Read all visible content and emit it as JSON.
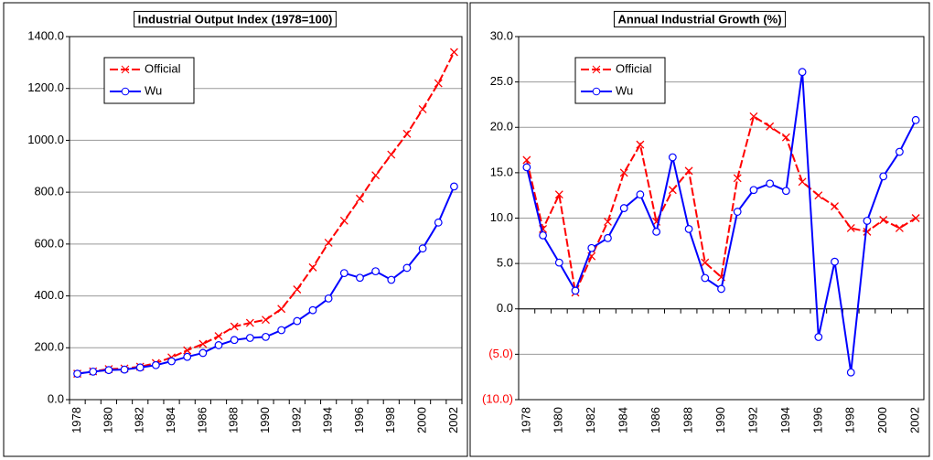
{
  "chart_data": [
    {
      "type": "line",
      "title": "Industrial Output Index (1978=100)",
      "categories": [
        "1978",
        null,
        "1980",
        null,
        "1982",
        null,
        "1984",
        null,
        "1986",
        null,
        "1988",
        null,
        "1990",
        null,
        "1992",
        null,
        "1994",
        null,
        "1996",
        null,
        "1998",
        null,
        "2000",
        null,
        "2002"
      ],
      "series": [
        {
          "name": "Official",
          "color": "#ff0000",
          "values": [
            100,
            109,
            118,
            120,
            127,
            141,
            163,
            190,
            215,
            245,
            282,
            296,
            308,
            350,
            425,
            510,
            605,
            690,
            775,
            865,
            945,
            1025,
            1120,
            1220,
            1340
          ]
        },
        {
          "name": "Wu",
          "color": "#0000ff",
          "values": [
            100,
            108,
            114,
            116,
            124,
            133,
            148,
            165,
            180,
            210,
            230,
            238,
            242,
            268,
            303,
            345,
            390,
            488,
            470,
            495,
            462,
            508,
            583,
            683,
            822
          ]
        }
      ],
      "ylim": [
        0,
        1400
      ],
      "yticks": [
        {
          "value": 0,
          "label": "0.0"
        },
        {
          "value": 200,
          "label": "200.0"
        },
        {
          "value": 400,
          "label": "400.0"
        },
        {
          "value": 600,
          "label": "600.0"
        },
        {
          "value": 800,
          "label": "800.0"
        },
        {
          "value": 1000,
          "label": "1000.0"
        },
        {
          "value": 1200,
          "label": "1200.0"
        },
        {
          "value": 1400,
          "label": "1400.0"
        }
      ],
      "grid": true,
      "legend": "top-left"
    },
    {
      "type": "line",
      "title": "Annual Industrial Growth (%)",
      "categories": [
        "1978",
        null,
        "1980",
        null,
        "1982",
        null,
        "1984",
        null,
        "1986",
        null,
        "1988",
        null,
        "1990",
        null,
        "1992",
        null,
        "1994",
        null,
        "1996",
        null,
        "1998",
        null,
        "2000",
        null,
        "2002"
      ],
      "series": [
        {
          "name": "Official",
          "color": "#ff0000",
          "values": [
            16.4,
            8.8,
            12.6,
            1.8,
            5.8,
            9.6,
            15.0,
            18.1,
            9.6,
            13.1,
            15.2,
            5.1,
            3.5,
            14.4,
            21.2,
            20.1,
            18.9,
            14.0,
            12.5,
            11.3,
            8.9,
            8.5,
            9.8,
            8.9,
            10.0
          ]
        },
        {
          "name": "Wu",
          "color": "#0000ff",
          "values": [
            15.6,
            8.1,
            5.1,
            2.0,
            6.7,
            7.8,
            11.1,
            12.6,
            8.5,
            16.7,
            8.8,
            3.4,
            2.2,
            10.7,
            13.1,
            13.8,
            13.0,
            26.1,
            -3.1,
            5.2,
            -7.0,
            9.7,
            14.6,
            17.3,
            20.8
          ]
        }
      ],
      "ylim": [
        -10,
        30
      ],
      "yticks": [
        {
          "value": -10,
          "label": "(10.0)"
        },
        {
          "value": -5,
          "label": "(5.0)"
        },
        {
          "value": 0,
          "label": "0.0"
        },
        {
          "value": 5,
          "label": "5.0"
        },
        {
          "value": 10,
          "label": "10.0"
        },
        {
          "value": 15,
          "label": "15.0"
        },
        {
          "value": 20,
          "label": "20.0"
        },
        {
          "value": 25,
          "label": "25.0"
        },
        {
          "value": 30,
          "label": "30.0"
        }
      ],
      "negative_label_color": "#ff0000",
      "grid": true,
      "legend": "top-left"
    }
  ]
}
